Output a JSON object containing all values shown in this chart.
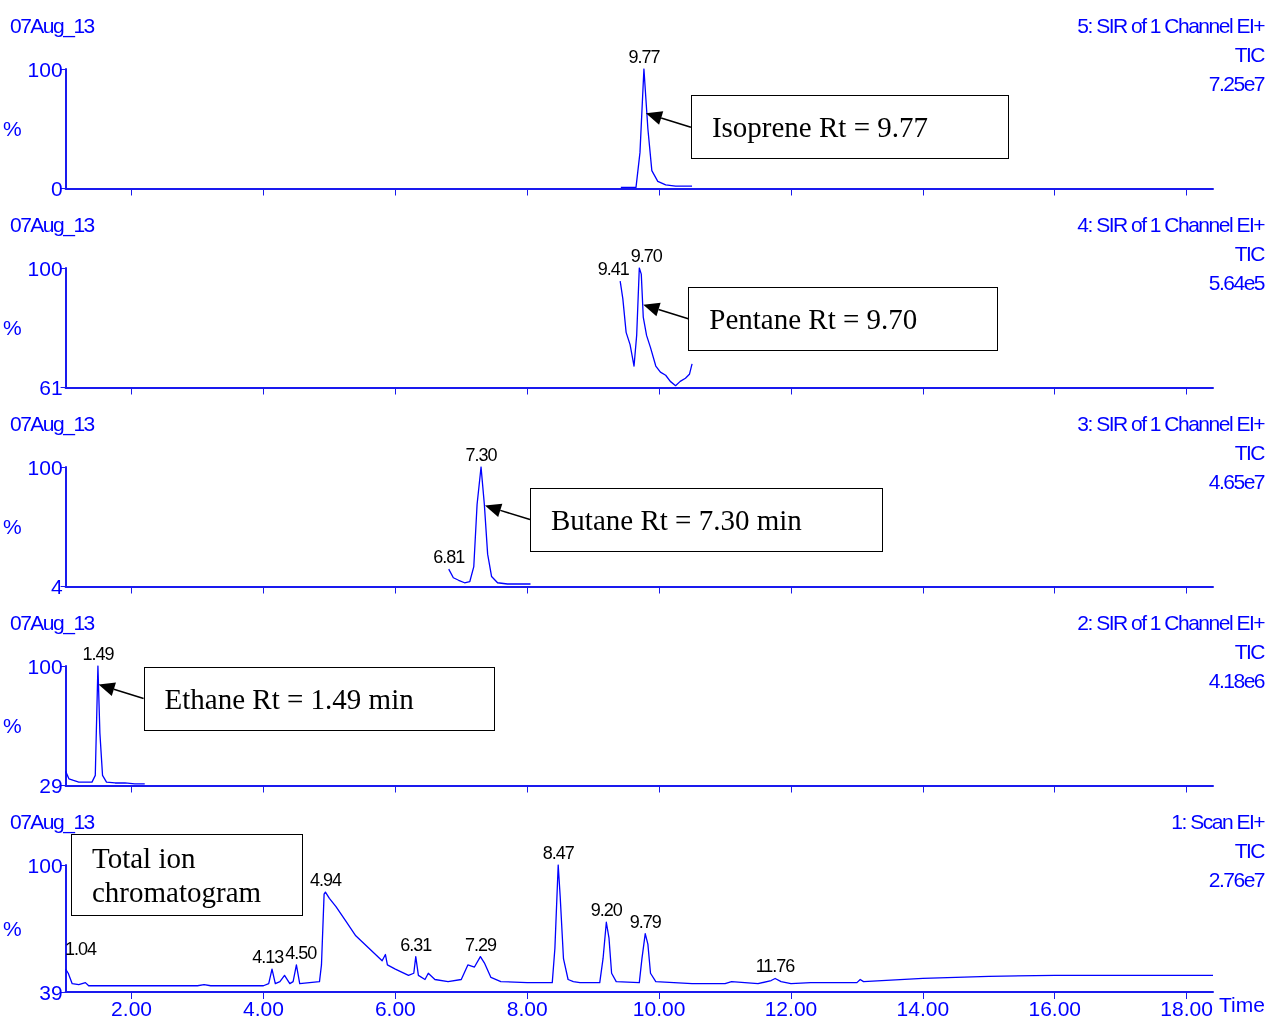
{
  "chart_data": [
    {
      "type": "line",
      "ylabel": "%",
      "color": "#0000ff",
      "xlim": [
        1.0,
        18.4
      ],
      "xticks": [
        2,
        4,
        6,
        8,
        10,
        12,
        14,
        16,
        18
      ],
      "ylim": [
        0,
        100
      ],
      "yticks": [
        0,
        100
      ],
      "tick_labels": "y",
      "annotations": [
        "07Aug_13",
        "5: SIR of 1 Channel EI+",
        "TIC",
        "7.25e7",
        {
          "text": "9.77",
          "x": 9.77,
          "y": 100
        },
        {
          "text": "Isoprene Rt = 9.77",
          "x": 9.8,
          "y": 63
        }
      ],
      "x": [
        9.42,
        9.65,
        9.71,
        9.77,
        9.83,
        9.89,
        9.98,
        10.1,
        10.25,
        10.5
      ],
      "values": [
        1,
        1,
        30,
        100,
        50,
        15,
        6,
        3,
        2,
        2
      ]
    },
    {
      "type": "line",
      "ylabel": "%",
      "color": "#0000ff",
      "xlim": [
        1.0,
        18.4
      ],
      "xticks": [
        2,
        4,
        6,
        8,
        10,
        12,
        14,
        16,
        18
      ],
      "ylim": [
        61,
        100
      ],
      "yticks": [
        61,
        100
      ],
      "tick_labels": "y",
      "annotations": [
        "07Aug_13",
        "4: SIR of 1 Channel EI+",
        "TIC",
        "5.64e5",
        {
          "text": "9.41",
          "x": 9.41,
          "y": 95.7
        },
        {
          "text": "9.70",
          "x": 9.7,
          "y": 100
        },
        {
          "text": "Pentane Rt = 9.70",
          "x": 9.76,
          "y": 88
        }
      ],
      "x": [
        9.41,
        9.45,
        9.5,
        9.56,
        9.62,
        9.66,
        9.7,
        9.73,
        9.76,
        9.81,
        9.87,
        9.95,
        10.02,
        10.1,
        10.17,
        10.25,
        10.32,
        10.4,
        10.46,
        10.5
      ],
      "values": [
        95.7,
        90,
        79,
        75,
        68,
        78,
        100,
        98,
        84,
        78,
        74,
        68,
        66,
        65,
        63,
        61.6,
        63,
        64,
        65.3,
        68.7
      ]
    },
    {
      "type": "line",
      "ylabel": "%",
      "color": "#0000ff",
      "xlim": [
        1.0,
        18.4
      ],
      "xticks": [
        2,
        4,
        6,
        8,
        10,
        12,
        14,
        16,
        18
      ],
      "ylim": [
        4,
        100
      ],
      "yticks": [
        4,
        100
      ],
      "tick_labels": "y",
      "annotations": [
        "07Aug_13",
        "3: SIR of 1 Channel EI+",
        "TIC",
        "4.65e7",
        {
          "text": "6.81",
          "x": 6.81,
          "y": 18
        },
        {
          "text": "7.30",
          "x": 7.3,
          "y": 100
        },
        {
          "text": "Butane Rt = 7.30 min",
          "x": 7.36,
          "y": 69
        }
      ],
      "x": [
        6.81,
        6.88,
        6.96,
        7.05,
        7.13,
        7.19,
        7.24,
        7.3,
        7.35,
        7.4,
        7.46,
        7.55,
        7.7,
        7.9,
        8.05
      ],
      "values": [
        18,
        11,
        9,
        7,
        8,
        20,
        70,
        100,
        70,
        30,
        12,
        7,
        6,
        6,
        6
      ]
    },
    {
      "type": "line",
      "ylabel": "%",
      "color": "#0000ff",
      "xlim": [
        1.0,
        18.4
      ],
      "xticks": [
        2,
        4,
        6,
        8,
        10,
        12,
        14,
        16,
        18
      ],
      "ylim": [
        29,
        100
      ],
      "yticks": [
        29,
        100
      ],
      "tick_labels": "y",
      "annotations": [
        "07Aug_13",
        "2: SIR of 1 Channel EI+",
        "TIC",
        "4.18e6",
        {
          "text": "1.49",
          "x": 1.49,
          "y": 100
        },
        {
          "text": "Ethane Rt = 1.49 min",
          "x": 1.5,
          "y": 89
        }
      ],
      "x": [
        1.0,
        1.05,
        1.12,
        1.2,
        1.3,
        1.4,
        1.45,
        1.49,
        1.52,
        1.56,
        1.62,
        1.75,
        1.9,
        2.05,
        2.2
      ],
      "values": [
        37.5,
        33,
        32,
        31,
        31,
        31,
        35,
        100,
        60,
        35,
        31,
        30.5,
        30.5,
        30,
        30
      ]
    },
    {
      "type": "line",
      "ylabel": "%",
      "xlabel": "Time",
      "color": "#0000ff",
      "xlim": [
        1.0,
        18.4
      ],
      "xticks": [
        {
          "value": 2,
          "label": "2.00"
        },
        {
          "value": 4,
          "label": "4.00"
        },
        {
          "value": 6,
          "label": "6.00"
        },
        {
          "value": 8,
          "label": "8.00"
        },
        {
          "value": 10,
          "label": "10.00"
        },
        {
          "value": 12,
          "label": "12.00"
        },
        {
          "value": 14,
          "label": "14.00"
        },
        {
          "value": 16,
          "label": "16.00"
        },
        {
          "value": 18,
          "label": "18.00"
        }
      ],
      "ylim": [
        39,
        100
      ],
      "yticks": [
        39,
        100
      ],
      "annotations": [
        "07Aug_13",
        "1: Scan EI+",
        "TIC",
        "2.76e7",
        "Total ion chromatogram",
        {
          "text": "1.04",
          "x": 1.04,
          "y": 48
        },
        {
          "text": "4.13",
          "x": 4.13,
          "y": 50
        },
        {
          "text": "4.50",
          "x": 4.5,
          "y": 52
        },
        {
          "text": "4.94",
          "x": 4.94,
          "y": 87
        },
        {
          "text": "6.31",
          "x": 6.31,
          "y": 56
        },
        {
          "text": "7.29",
          "x": 7.29,
          "y": 56
        },
        {
          "text": "8.47",
          "x": 8.47,
          "y": 100
        },
        {
          "text": "9.20",
          "x": 9.2,
          "y": 72.5
        },
        {
          "text": "9.79",
          "x": 9.79,
          "y": 67
        },
        {
          "text": "11.76",
          "x": 11.76,
          "y": 45.5
        }
      ],
      "x": [
        1.0,
        1.04,
        1.1,
        1.2,
        1.3,
        1.35,
        1.5,
        2.0,
        3.0,
        3.1,
        3.2,
        4.0,
        4.08,
        4.13,
        4.18,
        4.25,
        4.32,
        4.4,
        4.45,
        4.5,
        4.55,
        4.7,
        4.85,
        4.88,
        4.92,
        4.94,
        5.0,
        5.1,
        5.25,
        5.4,
        5.6,
        5.8,
        5.85,
        5.88,
        6.0,
        6.2,
        6.28,
        6.31,
        6.35,
        6.45,
        6.5,
        6.6,
        6.8,
        7.0,
        7.1,
        7.2,
        7.29,
        7.35,
        7.45,
        7.6,
        8.0,
        8.38,
        8.42,
        8.47,
        8.5,
        8.55,
        8.62,
        8.7,
        8.8,
        9.1,
        9.15,
        9.2,
        9.24,
        9.28,
        9.35,
        9.7,
        9.74,
        9.79,
        9.83,
        9.87,
        9.95,
        10.5,
        11.0,
        11.1,
        11.5,
        11.7,
        11.76,
        11.85,
        12.0,
        12.3,
        13.0,
        13.05,
        13.1,
        14.0,
        15.0,
        16.0,
        17.0,
        18.0,
        18.4
      ],
      "values": [
        50,
        48,
        43,
        42.5,
        43.5,
        42,
        42,
        42,
        42,
        42.5,
        42,
        42,
        43,
        50,
        43,
        44,
        47,
        43,
        44,
        52,
        43,
        43.5,
        44,
        52,
        86,
        87,
        84,
        80,
        73,
        66,
        60,
        54,
        57,
        52,
        50,
        47,
        48,
        56,
        47,
        45,
        48,
        45,
        44,
        45,
        52,
        51,
        56,
        53,
        46,
        44,
        43.5,
        43.5,
        60,
        100,
        85,
        55,
        45,
        44,
        43.5,
        43.5,
        55,
        72.5,
        65,
        48,
        44,
        43.5,
        55,
        67,
        62,
        48,
        44,
        43,
        43,
        44,
        43,
        44.5,
        45.5,
        44,
        43,
        43.5,
        43.5,
        45,
        44,
        45.5,
        46.5,
        47,
        47,
        47,
        47
      ]
    }
  ]
}
